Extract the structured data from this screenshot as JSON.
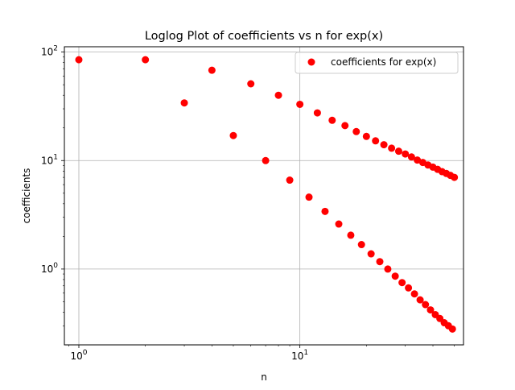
{
  "chart_data": {
    "type": "scatter",
    "title": "Loglog Plot of coefficients vs n for exp(x)",
    "xlabel": "n",
    "ylabel": "coefficients",
    "xscale": "log",
    "yscale": "log",
    "xlim": [
      0.86,
      55
    ],
    "ylim": [
      0.2,
      112
    ],
    "grid": true,
    "legend_position": "top-right",
    "marker_color": "#ff0000",
    "series": [
      {
        "name": "coefficients for exp(x)",
        "x": [
          1,
          2,
          3,
          4,
          5,
          6,
          7,
          8,
          9,
          10,
          11,
          12,
          13,
          14,
          15,
          16,
          17,
          18,
          19,
          20,
          21,
          22,
          23,
          24,
          25,
          26,
          27,
          28,
          29,
          30,
          31,
          32,
          33,
          34,
          35,
          36,
          37,
          38,
          39,
          40,
          41,
          42,
          43,
          44,
          45,
          46,
          47,
          48,
          49,
          50
        ],
        "y": [
          85,
          85,
          34,
          68,
          17,
          51,
          10,
          40,
          6.6,
          33,
          4.6,
          27.5,
          3.4,
          23.5,
          2.6,
          21,
          2.05,
          18.5,
          1.68,
          16.7,
          1.38,
          15.2,
          1.17,
          14,
          1.0,
          13,
          0.86,
          12.2,
          0.75,
          11.5,
          0.67,
          10.8,
          0.59,
          10.1,
          0.52,
          9.6,
          0.47,
          9.1,
          0.42,
          8.7,
          0.38,
          8.3,
          0.35,
          7.9,
          0.32,
          7.6,
          0.3,
          7.3,
          0.28,
          7.0
        ]
      }
    ],
    "x_ticks": [
      {
        "value": 1,
        "base": "10",
        "exp": "0"
      },
      {
        "value": 10,
        "base": "10",
        "exp": "1"
      }
    ],
    "y_ticks": [
      {
        "value": 1,
        "base": "10",
        "exp": "0"
      },
      {
        "value": 10,
        "base": "10",
        "exp": "1"
      },
      {
        "value": 100,
        "base": "10",
        "exp": "2"
      }
    ]
  }
}
